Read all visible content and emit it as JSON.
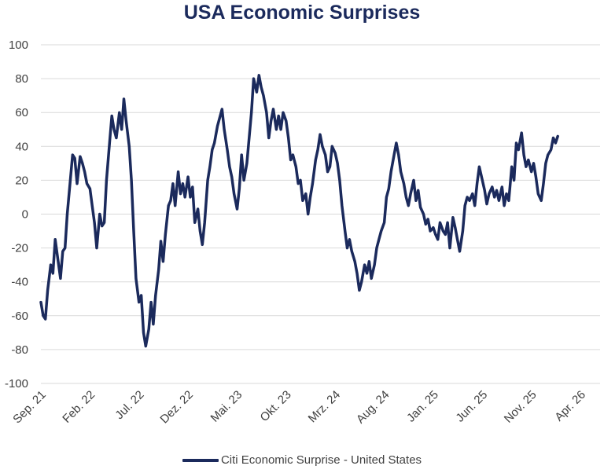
{
  "colors": {
    "series": "#1b2a5c",
    "gridline": "#d9d9d9",
    "tick_text": "#404040"
  },
  "chart_data": {
    "type": "line",
    "title": "USA Economic Surprises",
    "xlabel": "",
    "ylabel": "",
    "ylim": [
      -100,
      100
    ],
    "yticks": [
      100,
      80,
      60,
      40,
      20,
      0,
      -20,
      -40,
      -60,
      -80,
      -100
    ],
    "xlim": [
      "2021-09",
      "2026-06"
    ],
    "xticks": [
      {
        "label": "Sep. 21",
        "date": "2021-09"
      },
      {
        "label": "Feb. 22",
        "date": "2022-02"
      },
      {
        "label": "Jul. 22",
        "date": "2022-07"
      },
      {
        "label": "Dez. 22",
        "date": "2022-12"
      },
      {
        "label": "Mai. 23",
        "date": "2023-05"
      },
      {
        "label": "Okt. 23",
        "date": "2023-10"
      },
      {
        "label": "Mrz. 24",
        "date": "2024-03"
      },
      {
        "label": "Aug. 24",
        "date": "2024-08"
      },
      {
        "label": "Jan. 25",
        "date": "2025-01"
      },
      {
        "label": "Jun. 25",
        "date": "2025-06"
      },
      {
        "label": "Nov. 25",
        "date": "2025-11"
      },
      {
        "label": "Apr. 26",
        "date": "2026-04"
      }
    ],
    "grid": true,
    "legend_position": "bottom",
    "series": [
      {
        "name": "Citi Economic Surprise - United States",
        "points": [
          [
            "2021-09-01",
            -52
          ],
          [
            "2021-09-08",
            -60
          ],
          [
            "2021-09-15",
            -62
          ],
          [
            "2021-09-22",
            -45
          ],
          [
            "2021-10-01",
            -30
          ],
          [
            "2021-10-08",
            -35
          ],
          [
            "2021-10-15",
            -15
          ],
          [
            "2021-10-22",
            -25
          ],
          [
            "2021-11-01",
            -38
          ],
          [
            "2021-11-08",
            -22
          ],
          [
            "2021-11-15",
            -20
          ],
          [
            "2021-11-22",
            0
          ],
          [
            "2021-12-01",
            20
          ],
          [
            "2021-12-08",
            35
          ],
          [
            "2021-12-15",
            33
          ],
          [
            "2021-12-22",
            18
          ],
          [
            "2022-01-01",
            34
          ],
          [
            "2022-01-08",
            30
          ],
          [
            "2022-01-15",
            25
          ],
          [
            "2022-01-22",
            18
          ],
          [
            "2022-02-01",
            15
          ],
          [
            "2022-02-08",
            5
          ],
          [
            "2022-02-15",
            -5
          ],
          [
            "2022-02-22",
            -20
          ],
          [
            "2022-03-01",
            0
          ],
          [
            "2022-03-08",
            -7
          ],
          [
            "2022-03-15",
            -5
          ],
          [
            "2022-03-22",
            20
          ],
          [
            "2022-04-01",
            42
          ],
          [
            "2022-04-08",
            58
          ],
          [
            "2022-04-15",
            50
          ],
          [
            "2022-04-22",
            45
          ],
          [
            "2022-05-01",
            60
          ],
          [
            "2022-05-08",
            50
          ],
          [
            "2022-05-15",
            68
          ],
          [
            "2022-05-22",
            55
          ],
          [
            "2022-06-01",
            40
          ],
          [
            "2022-06-08",
            20
          ],
          [
            "2022-06-15",
            -10
          ],
          [
            "2022-06-22",
            -38
          ],
          [
            "2022-07-01",
            -52
          ],
          [
            "2022-07-08",
            -48
          ],
          [
            "2022-07-15",
            -70
          ],
          [
            "2022-07-22",
            -78
          ],
          [
            "2022-08-01",
            -68
          ],
          [
            "2022-08-08",
            -52
          ],
          [
            "2022-08-15",
            -65
          ],
          [
            "2022-08-22",
            -48
          ],
          [
            "2022-09-01",
            -33
          ],
          [
            "2022-09-08",
            -16
          ],
          [
            "2022-09-15",
            -28
          ],
          [
            "2022-09-22",
            -12
          ],
          [
            "2022-10-01",
            5
          ],
          [
            "2022-10-08",
            8
          ],
          [
            "2022-10-15",
            18
          ],
          [
            "2022-10-22",
            5
          ],
          [
            "2022-11-01",
            25
          ],
          [
            "2022-11-08",
            12
          ],
          [
            "2022-11-15",
            18
          ],
          [
            "2022-11-22",
            10
          ],
          [
            "2022-12-01",
            22
          ],
          [
            "2022-12-08",
            10
          ],
          [
            "2022-12-15",
            16
          ],
          [
            "2022-12-22",
            -5
          ],
          [
            "2023-01-01",
            3
          ],
          [
            "2023-01-08",
            -10
          ],
          [
            "2023-01-15",
            -18
          ],
          [
            "2023-01-22",
            -5
          ],
          [
            "2023-02-01",
            20
          ],
          [
            "2023-02-08",
            28
          ],
          [
            "2023-02-15",
            38
          ],
          [
            "2023-02-22",
            42
          ],
          [
            "2023-03-01",
            52
          ],
          [
            "2023-03-08",
            57
          ],
          [
            "2023-03-15",
            62
          ],
          [
            "2023-03-22",
            50
          ],
          [
            "2023-04-01",
            38
          ],
          [
            "2023-04-08",
            28
          ],
          [
            "2023-04-15",
            22
          ],
          [
            "2023-04-22",
            12
          ],
          [
            "2023-05-01",
            3
          ],
          [
            "2023-05-08",
            15
          ],
          [
            "2023-05-15",
            35
          ],
          [
            "2023-05-22",
            20
          ],
          [
            "2023-06-01",
            30
          ],
          [
            "2023-06-08",
            45
          ],
          [
            "2023-06-15",
            60
          ],
          [
            "2023-06-22",
            80
          ],
          [
            "2023-07-01",
            72
          ],
          [
            "2023-07-08",
            82
          ],
          [
            "2023-07-15",
            75
          ],
          [
            "2023-07-22",
            70
          ],
          [
            "2023-08-01",
            60
          ],
          [
            "2023-08-08",
            45
          ],
          [
            "2023-08-15",
            55
          ],
          [
            "2023-08-22",
            62
          ],
          [
            "2023-09-01",
            50
          ],
          [
            "2023-09-08",
            58
          ],
          [
            "2023-09-15",
            50
          ],
          [
            "2023-09-22",
            60
          ],
          [
            "2023-10-01",
            55
          ],
          [
            "2023-10-08",
            45
          ],
          [
            "2023-10-15",
            32
          ],
          [
            "2023-10-22",
            35
          ],
          [
            "2023-11-01",
            28
          ],
          [
            "2023-11-08",
            18
          ],
          [
            "2023-11-15",
            20
          ],
          [
            "2023-11-22",
            8
          ],
          [
            "2023-12-01",
            12
          ],
          [
            "2023-12-08",
            0
          ],
          [
            "2023-12-15",
            10
          ],
          [
            "2023-12-22",
            18
          ],
          [
            "2024-01-01",
            32
          ],
          [
            "2024-01-08",
            38
          ],
          [
            "2024-01-15",
            47
          ],
          [
            "2024-01-22",
            40
          ],
          [
            "2024-02-01",
            35
          ],
          [
            "2024-02-08",
            25
          ],
          [
            "2024-02-15",
            28
          ],
          [
            "2024-02-22",
            40
          ],
          [
            "2024-03-01",
            36
          ],
          [
            "2024-03-08",
            30
          ],
          [
            "2024-03-15",
            20
          ],
          [
            "2024-03-22",
            5
          ],
          [
            "2024-04-01",
            -10
          ],
          [
            "2024-04-08",
            -20
          ],
          [
            "2024-04-15",
            -15
          ],
          [
            "2024-04-22",
            -22
          ],
          [
            "2024-05-01",
            -28
          ],
          [
            "2024-05-08",
            -35
          ],
          [
            "2024-05-15",
            -45
          ],
          [
            "2024-05-22",
            -40
          ],
          [
            "2024-06-01",
            -30
          ],
          [
            "2024-06-08",
            -35
          ],
          [
            "2024-06-15",
            -28
          ],
          [
            "2024-06-22",
            -38
          ],
          [
            "2024-07-01",
            -30
          ],
          [
            "2024-07-08",
            -20
          ],
          [
            "2024-07-15",
            -15
          ],
          [
            "2024-07-22",
            -10
          ],
          [
            "2024-08-01",
            -5
          ],
          [
            "2024-08-08",
            10
          ],
          [
            "2024-08-15",
            15
          ],
          [
            "2024-08-22",
            25
          ],
          [
            "2024-09-01",
            35
          ],
          [
            "2024-09-08",
            42
          ],
          [
            "2024-09-15",
            35
          ],
          [
            "2024-09-22",
            25
          ],
          [
            "2024-10-01",
            18
          ],
          [
            "2024-10-08",
            10
          ],
          [
            "2024-10-15",
            5
          ],
          [
            "2024-10-22",
            12
          ],
          [
            "2024-11-01",
            20
          ],
          [
            "2024-11-08",
            8
          ],
          [
            "2024-11-15",
            14
          ],
          [
            "2024-11-22",
            4
          ],
          [
            "2024-12-01",
            0
          ],
          [
            "2024-12-08",
            -6
          ],
          [
            "2024-12-15",
            -3
          ],
          [
            "2024-12-22",
            -10
          ],
          [
            "2025-01-01",
            -8
          ],
          [
            "2025-01-08",
            -12
          ],
          [
            "2025-01-15",
            -15
          ],
          [
            "2025-01-22",
            -5
          ],
          [
            "2025-02-01",
            -10
          ],
          [
            "2025-02-08",
            -12
          ],
          [
            "2025-02-15",
            -5
          ],
          [
            "2025-02-22",
            -20
          ],
          [
            "2025-03-01",
            -2
          ],
          [
            "2025-03-08",
            -8
          ],
          [
            "2025-03-15",
            -15
          ],
          [
            "2025-03-22",
            -22
          ],
          [
            "2025-04-01",
            -10
          ],
          [
            "2025-04-08",
            5
          ],
          [
            "2025-04-15",
            10
          ],
          [
            "2025-04-22",
            8
          ],
          [
            "2025-05-01",
            12
          ],
          [
            "2025-05-08",
            5
          ],
          [
            "2025-05-15",
            18
          ],
          [
            "2025-05-22",
            28
          ],
          [
            "2025-06-01",
            20
          ],
          [
            "2025-06-08",
            14
          ],
          [
            "2025-06-15",
            6
          ],
          [
            "2025-06-22",
            12
          ],
          [
            "2025-07-01",
            16
          ],
          [
            "2025-07-08",
            10
          ],
          [
            "2025-07-15",
            14
          ],
          [
            "2025-07-22",
            8
          ],
          [
            "2025-08-01",
            16
          ],
          [
            "2025-08-08",
            5
          ],
          [
            "2025-08-15",
            12
          ],
          [
            "2025-08-22",
            8
          ],
          [
            "2025-09-01",
            28
          ],
          [
            "2025-09-08",
            20
          ],
          [
            "2025-09-15",
            42
          ],
          [
            "2025-09-22",
            38
          ],
          [
            "2025-10-01",
            48
          ],
          [
            "2025-10-08",
            35
          ],
          [
            "2025-10-15",
            28
          ],
          [
            "2025-10-22",
            32
          ],
          [
            "2025-11-01",
            25
          ],
          [
            "2025-11-08",
            30
          ],
          [
            "2025-11-15",
            22
          ],
          [
            "2025-11-22",
            12
          ],
          [
            "2025-12-01",
            8
          ],
          [
            "2025-12-08",
            18
          ],
          [
            "2025-12-15",
            30
          ],
          [
            "2025-12-22",
            35
          ],
          [
            "2026-01-01",
            38
          ],
          [
            "2026-01-08",
            45
          ],
          [
            "2026-01-15",
            42
          ],
          [
            "2026-01-22",
            46
          ]
        ]
      }
    ]
  }
}
